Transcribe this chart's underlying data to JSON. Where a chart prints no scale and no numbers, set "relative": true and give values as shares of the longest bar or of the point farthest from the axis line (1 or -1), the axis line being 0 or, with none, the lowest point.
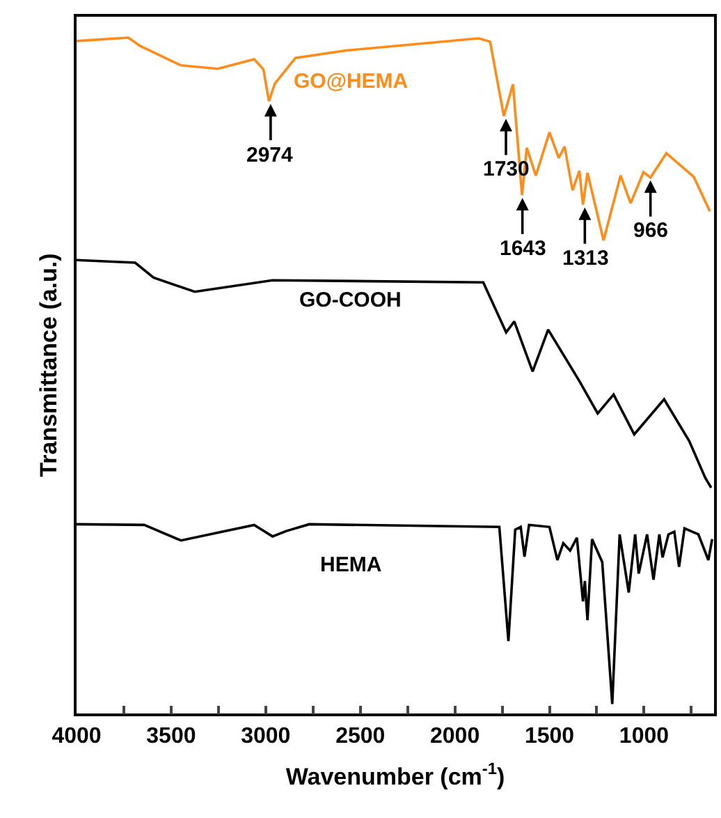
{
  "chart_data": {
    "type": "line",
    "relative": true,
    "xlabel": "Wavenumber (cm$^{-1}$)",
    "ylabel": "Transmittance (a.u.)",
    "xlim": [
      4000,
      630
    ],
    "xticks": [
      4000,
      {
        "value": 3750,
        "label": null
      },
      3500,
      {
        "value": 3250,
        "label": null
      },
      3000,
      {
        "value": 2750,
        "label": null
      },
      2500,
      {
        "value": 2250,
        "label": null
      },
      2000,
      {
        "value": 1750,
        "label": null
      },
      1500,
      {
        "value": 1250,
        "label": null
      },
      1000,
      {
        "value": 750,
        "label": null
      }
    ],
    "legend": false,
    "marker": "none",
    "line_style": "solid",
    "series": [
      {
        "name": "GO@HEMA",
        "color": "#ff8c1a",
        "x": [
          4000,
          3726,
          3666,
          3448,
          3254,
          3061,
          3012,
          2983,
          2952,
          2843,
          2577,
          1874,
          1814,
          1741,
          1693,
          1645,
          1620,
          1572,
          1500,
          1451,
          1420,
          1378,
          1342,
          1323,
          1299,
          1214,
          1124,
          1071,
          1003,
          966,
          882,
          737,
          652
        ],
        "values": [
          0.995,
          1.0,
          0.988,
          0.959,
          0.954,
          0.968,
          0.953,
          0.906,
          0.932,
          0.97,
          0.981,
          0.999,
          0.994,
          0.884,
          0.931,
          0.767,
          0.837,
          0.796,
          0.86,
          0.822,
          0.839,
          0.774,
          0.803,
          0.753,
          0.8,
          0.7,
          0.796,
          0.755,
          0.801,
          0.793,
          0.829,
          0.794,
          0.743
        ]
      },
      {
        "name": "GO-COOH",
        "color": "#000000",
        "x": [
          4000,
          3690,
          3593,
          3375,
          2964,
          1850,
          1729,
          1686,
          1589,
          1507,
          1342,
          1245,
          1161,
          1052,
          894,
          761,
          677,
          645
        ],
        "values": [
          0.671,
          0.667,
          0.645,
          0.624,
          0.641,
          0.638,
          0.564,
          0.58,
          0.506,
          0.568,
          0.492,
          0.444,
          0.472,
          0.413,
          0.465,
          0.403,
          0.349,
          0.334
        ]
      },
      {
        "name": "HEMA",
        "color": "#000000",
        "x": [
          4000,
          3642,
          3448,
          3061,
          2964,
          2891,
          2770,
          1765,
          1717,
          1681,
          1652,
          1632,
          1608,
          1500,
          1458,
          1427,
          1391,
          1355,
          1323,
          1313,
          1299,
          1275,
          1221,
          1168,
          1129,
          1081,
          1047,
          1028,
          984,
          950,
          919,
          902,
          871,
          840,
          815,
          786,
          713,
          660,
          640
        ],
        "values": [
          0.28,
          0.279,
          0.256,
          0.279,
          0.262,
          0.27,
          0.28,
          0.276,
          0.107,
          0.272,
          0.276,
          0.232,
          0.279,
          0.276,
          0.227,
          0.252,
          0.241,
          0.26,
          0.166,
          0.196,
          0.138,
          0.258,
          0.224,
          0.014,
          0.265,
          0.179,
          0.265,
          0.207,
          0.265,
          0.198,
          0.265,
          0.231,
          0.265,
          0.269,
          0.217,
          0.274,
          0.265,
          0.227,
          0.258
        ]
      }
    ],
    "annotations": [
      {
        "text": "2974",
        "x": 2974,
        "y": 0.906
      },
      {
        "text": "1730",
        "x": 1730,
        "y": 0.884
      },
      {
        "text": "1643",
        "x": 1643,
        "y": 0.767
      },
      {
        "text": "1313",
        "x": 1313,
        "y": 0.753
      },
      {
        "text": "966",
        "x": 966,
        "y": 0.793
      }
    ]
  }
}
